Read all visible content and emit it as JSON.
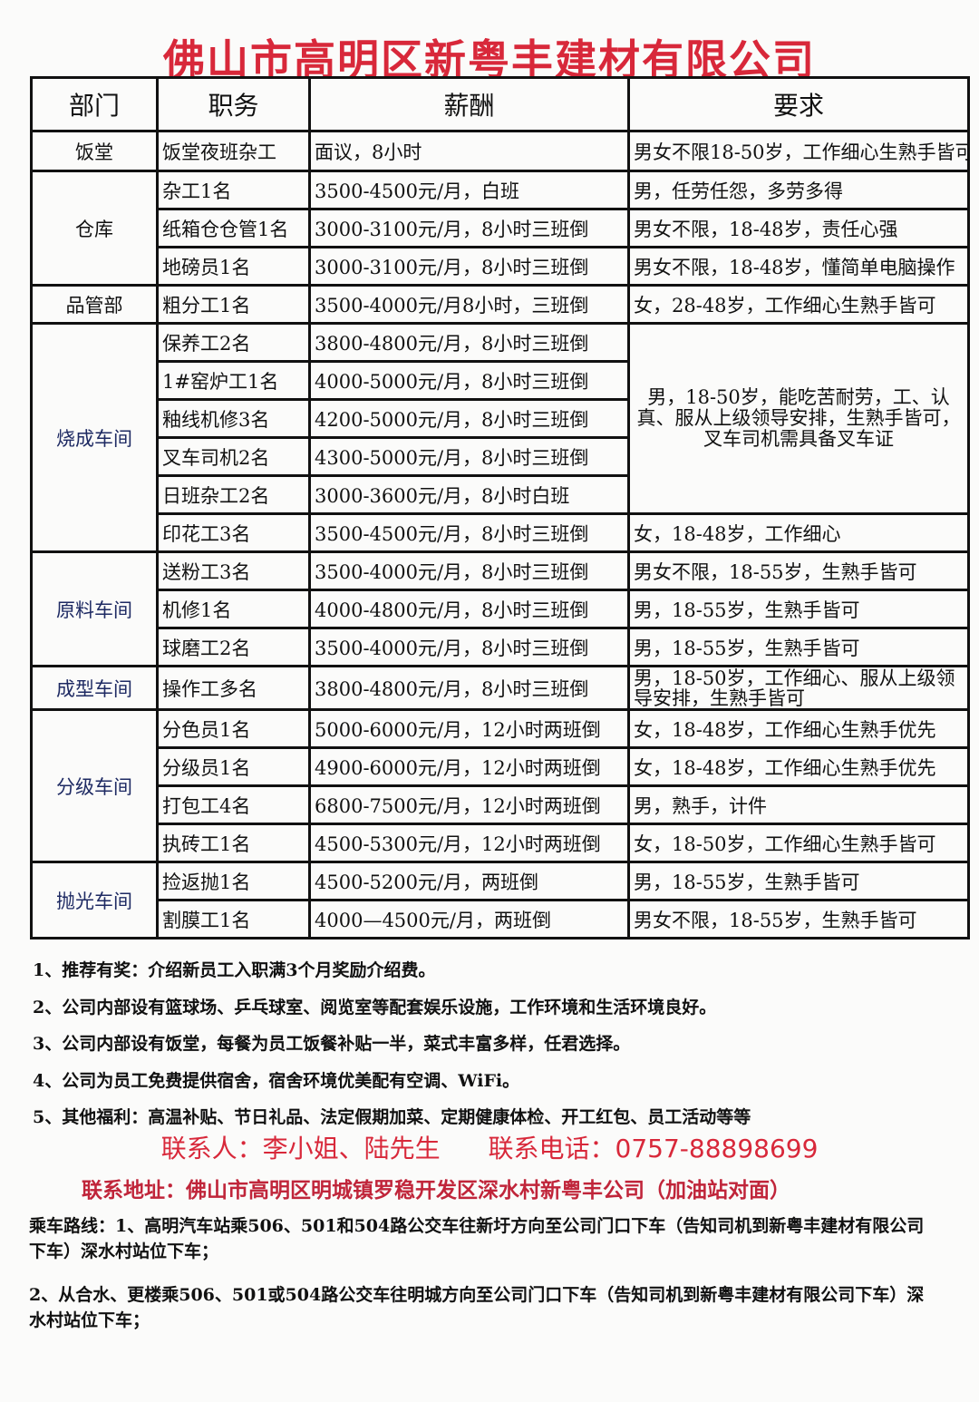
{
  "title": "佛山市高明区新粤丰建材有限公司",
  "headers": [
    "部门",
    "职务",
    "薪酬",
    "要求"
  ],
  "rows": [
    {
      "dept": "饭堂",
      "dept_span": 1,
      "job": "饭堂夜班杂工",
      "salary": "面议，8小时",
      "req": "男女不限18-50岁，工作细心生熟手皆可",
      "req_span": 1
    },
    {
      "dept": "仓库",
      "dept_span": 3,
      "job": "杂工1名",
      "salary": "3500-4500元/月，白班",
      "req": "男，任劳任怨，多劳多得",
      "req_span": 1
    },
    {
      "job": "纸箱仓仓管1名",
      "salary": "3000-3100元/月，8小时三班倒",
      "req": "男女不限，18-48岁，责任心强",
      "req_span": 1
    },
    {
      "job": "地磅员1名",
      "salary": "3000-3100元/月，8小时三班倒",
      "req": "男女不限，18-48岁，懂简单电脑操作",
      "req_span": 1
    },
    {
      "dept": "品管部",
      "dept_span": 1,
      "job": "粗分工1名",
      "salary": "3500-4000元/月8小时，三班倒",
      "req": "女，28-48岁，工作细心生熟手皆可",
      "req_span": 1
    },
    {
      "dept": "烧成车间",
      "dept_span": 6,
      "job": "保养工2名",
      "salary": "3800-4800元/月，8小时三班倒",
      "req": "男，18-50岁，能吃苦耐劳，工、认真、服从上级领导安排，生熟手皆可，叉车司机需具备叉车证",
      "req_span": 5
    },
    {
      "job": "1#窑炉工1名",
      "salary": "4000-5000元/月，8小时三班倒"
    },
    {
      "job": "釉线机修3名",
      "salary": "4200-5000元/月，8小时三班倒"
    },
    {
      "job": "叉车司机2名",
      "salary": "4300-5000元/月，8小时三班倒"
    },
    {
      "job": "日班杂工2名",
      "salary": "3000-3600元/月，8小时白班"
    },
    {
      "job": "印花工3名",
      "salary": "3500-4500元/月，8小时三班倒",
      "req": "女，18-48岁，工作细心",
      "req_span": 1
    },
    {
      "dept": "原料车间",
      "dept_span": 3,
      "job": "送粉工3名",
      "salary": "3500-4000元/月，8小时三班倒",
      "req": "男女不限，18-55岁，生熟手皆可",
      "req_span": 1
    },
    {
      "job": "机修1名",
      "salary": "4000-4800元/月，8小时三班倒",
      "req": "男，18-55岁，生熟手皆可",
      "req_span": 1
    },
    {
      "job": "球磨工2名",
      "salary": "3500-4000元/月，8小时三班倒",
      "req": "男，18-55岁，生熟手皆可",
      "req_span": 1
    },
    {
      "dept": "成型车间",
      "dept_span": 1,
      "job": "操作工多名",
      "salary": "3800-4800元/月，8小时三班倒",
      "req": "男，18-50岁，工作细心、服从上级领导安排，生熟手皆可",
      "req_span": 1
    },
    {
      "dept": "分级车间",
      "dept_span": 4,
      "job": "分色员1名",
      "salary": "5000-6000元/月，12小时两班倒",
      "req": "女，18-48岁，工作细心生熟手优先",
      "req_span": 1
    },
    {
      "job": "分级员1名",
      "salary": "4900-6000元/月，12小时两班倒",
      "req": "女，18-48岁，工作细心生熟手优先",
      "req_span": 1
    },
    {
      "job": "打包工4名",
      "salary": "6800-7500元/月，12小时两班倒",
      "req": "男，熟手，计件",
      "req_span": 1
    },
    {
      "job": "执砖工1名",
      "salary": "4500-5300元/月，12小时两班倒",
      "req": "女，18-50岁，工作细心生熟手皆可",
      "req_span": 1
    },
    {
      "dept": "抛光车间",
      "dept_span": 2,
      "job": "捡返抛1名",
      "salary": "4500-5200元/月，两班倒",
      "req": "男，18-55岁，生熟手皆可",
      "req_span": 1
    },
    {
      "job": "割膜工1名",
      "salary": "4000—4500元/月，两班倒",
      "req": "男女不限，18-55岁，生熟手皆可",
      "req_span": 1
    }
  ],
  "notes": [
    "1、推荐有奖：介绍新员工入职满3个月奖励介绍费。",
    "2、公司内部设有篮球场、乒乓球室、阅览室等配套娱乐设施，工作环境和生活环境良好。",
    "3、公司内部设有饭堂，每餐为员工饭餐补贴一半，菜式丰富多样，任君选择。",
    "4、公司为员工免费提供宿舍，宿舍环境优美配有空调、WiFi。",
    "5、其他福利：高温补贴、节日礼品、法定假期加菜、定期健康体检、开工红包、员工活动等等"
  ],
  "contact": {
    "people": "联系人：李小姐、陆先生",
    "phone": "联系电话：0757-88898699",
    "address": "联系地址：佛山市高明区明城镇罗稳开发区深水村新粤丰公司（加油站对面）"
  },
  "routes": [
    "乘车路线：1、高明汽车站乘506、501和504路公交车往新圩方向至公司门口下车（告知司机到新粤丰建材有限公司下车）深水村站位下车；",
    "2、从合水、更楼乘506、501或504路公交车往明城方向至公司门口下车（告知司机到新粤丰建材有限公司下车）深水村站位下车；"
  ],
  "colors": {
    "title": "#d8283a",
    "dept_blue": "#1e2a63",
    "contact": "#d8283a"
  }
}
